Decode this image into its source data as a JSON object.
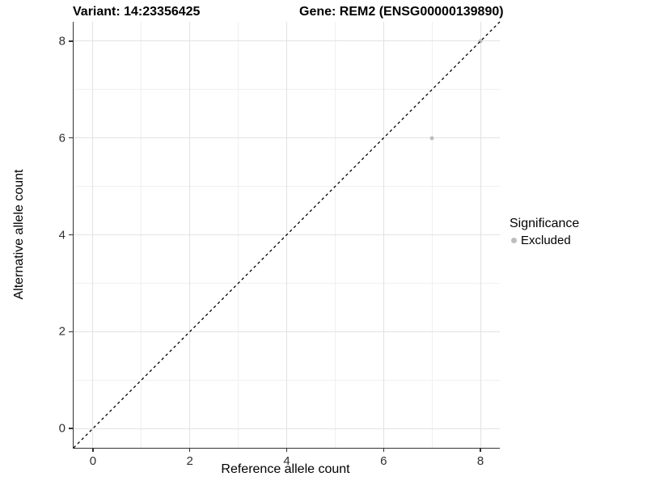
{
  "titles": {
    "left": "Variant: 14:23356425",
    "right": "Gene: REM2 (ENSG00000139890)"
  },
  "chart_data": {
    "type": "scatter",
    "xlabel": "Reference allele count",
    "ylabel": "Alternative allele count",
    "xlim": [
      -0.4,
      8.4
    ],
    "ylim": [
      -0.4,
      8.4
    ],
    "x_ticks": [
      0,
      2,
      4,
      6,
      8
    ],
    "y_ticks": [
      0,
      2,
      4,
      6,
      8
    ],
    "x_minor_ticks": [
      1,
      3,
      5,
      7
    ],
    "y_minor_ticks": [
      1,
      3,
      5,
      7
    ],
    "grid": true,
    "identity_line": {
      "style": "dashed",
      "color": "#000000",
      "from": [
        -0.4,
        -0.4
      ],
      "to": [
        8.4,
        8.4
      ]
    },
    "series": [
      {
        "name": "Excluded",
        "color": "#bdbdbd",
        "points": [
          [
            7,
            6
          ],
          [
            8,
            8
          ]
        ]
      }
    ],
    "legend": {
      "title": "Significance",
      "position": "right",
      "items": [
        {
          "label": "Excluded",
          "color": "#bdbdbd"
        }
      ]
    }
  },
  "colors": {
    "background": "#ffffff",
    "axis_line": "#333333",
    "grid_major": "#e2e2e2",
    "grid_minor": "#f0f0f0",
    "tick_label": "#303030",
    "point": "#bdbdbd"
  }
}
